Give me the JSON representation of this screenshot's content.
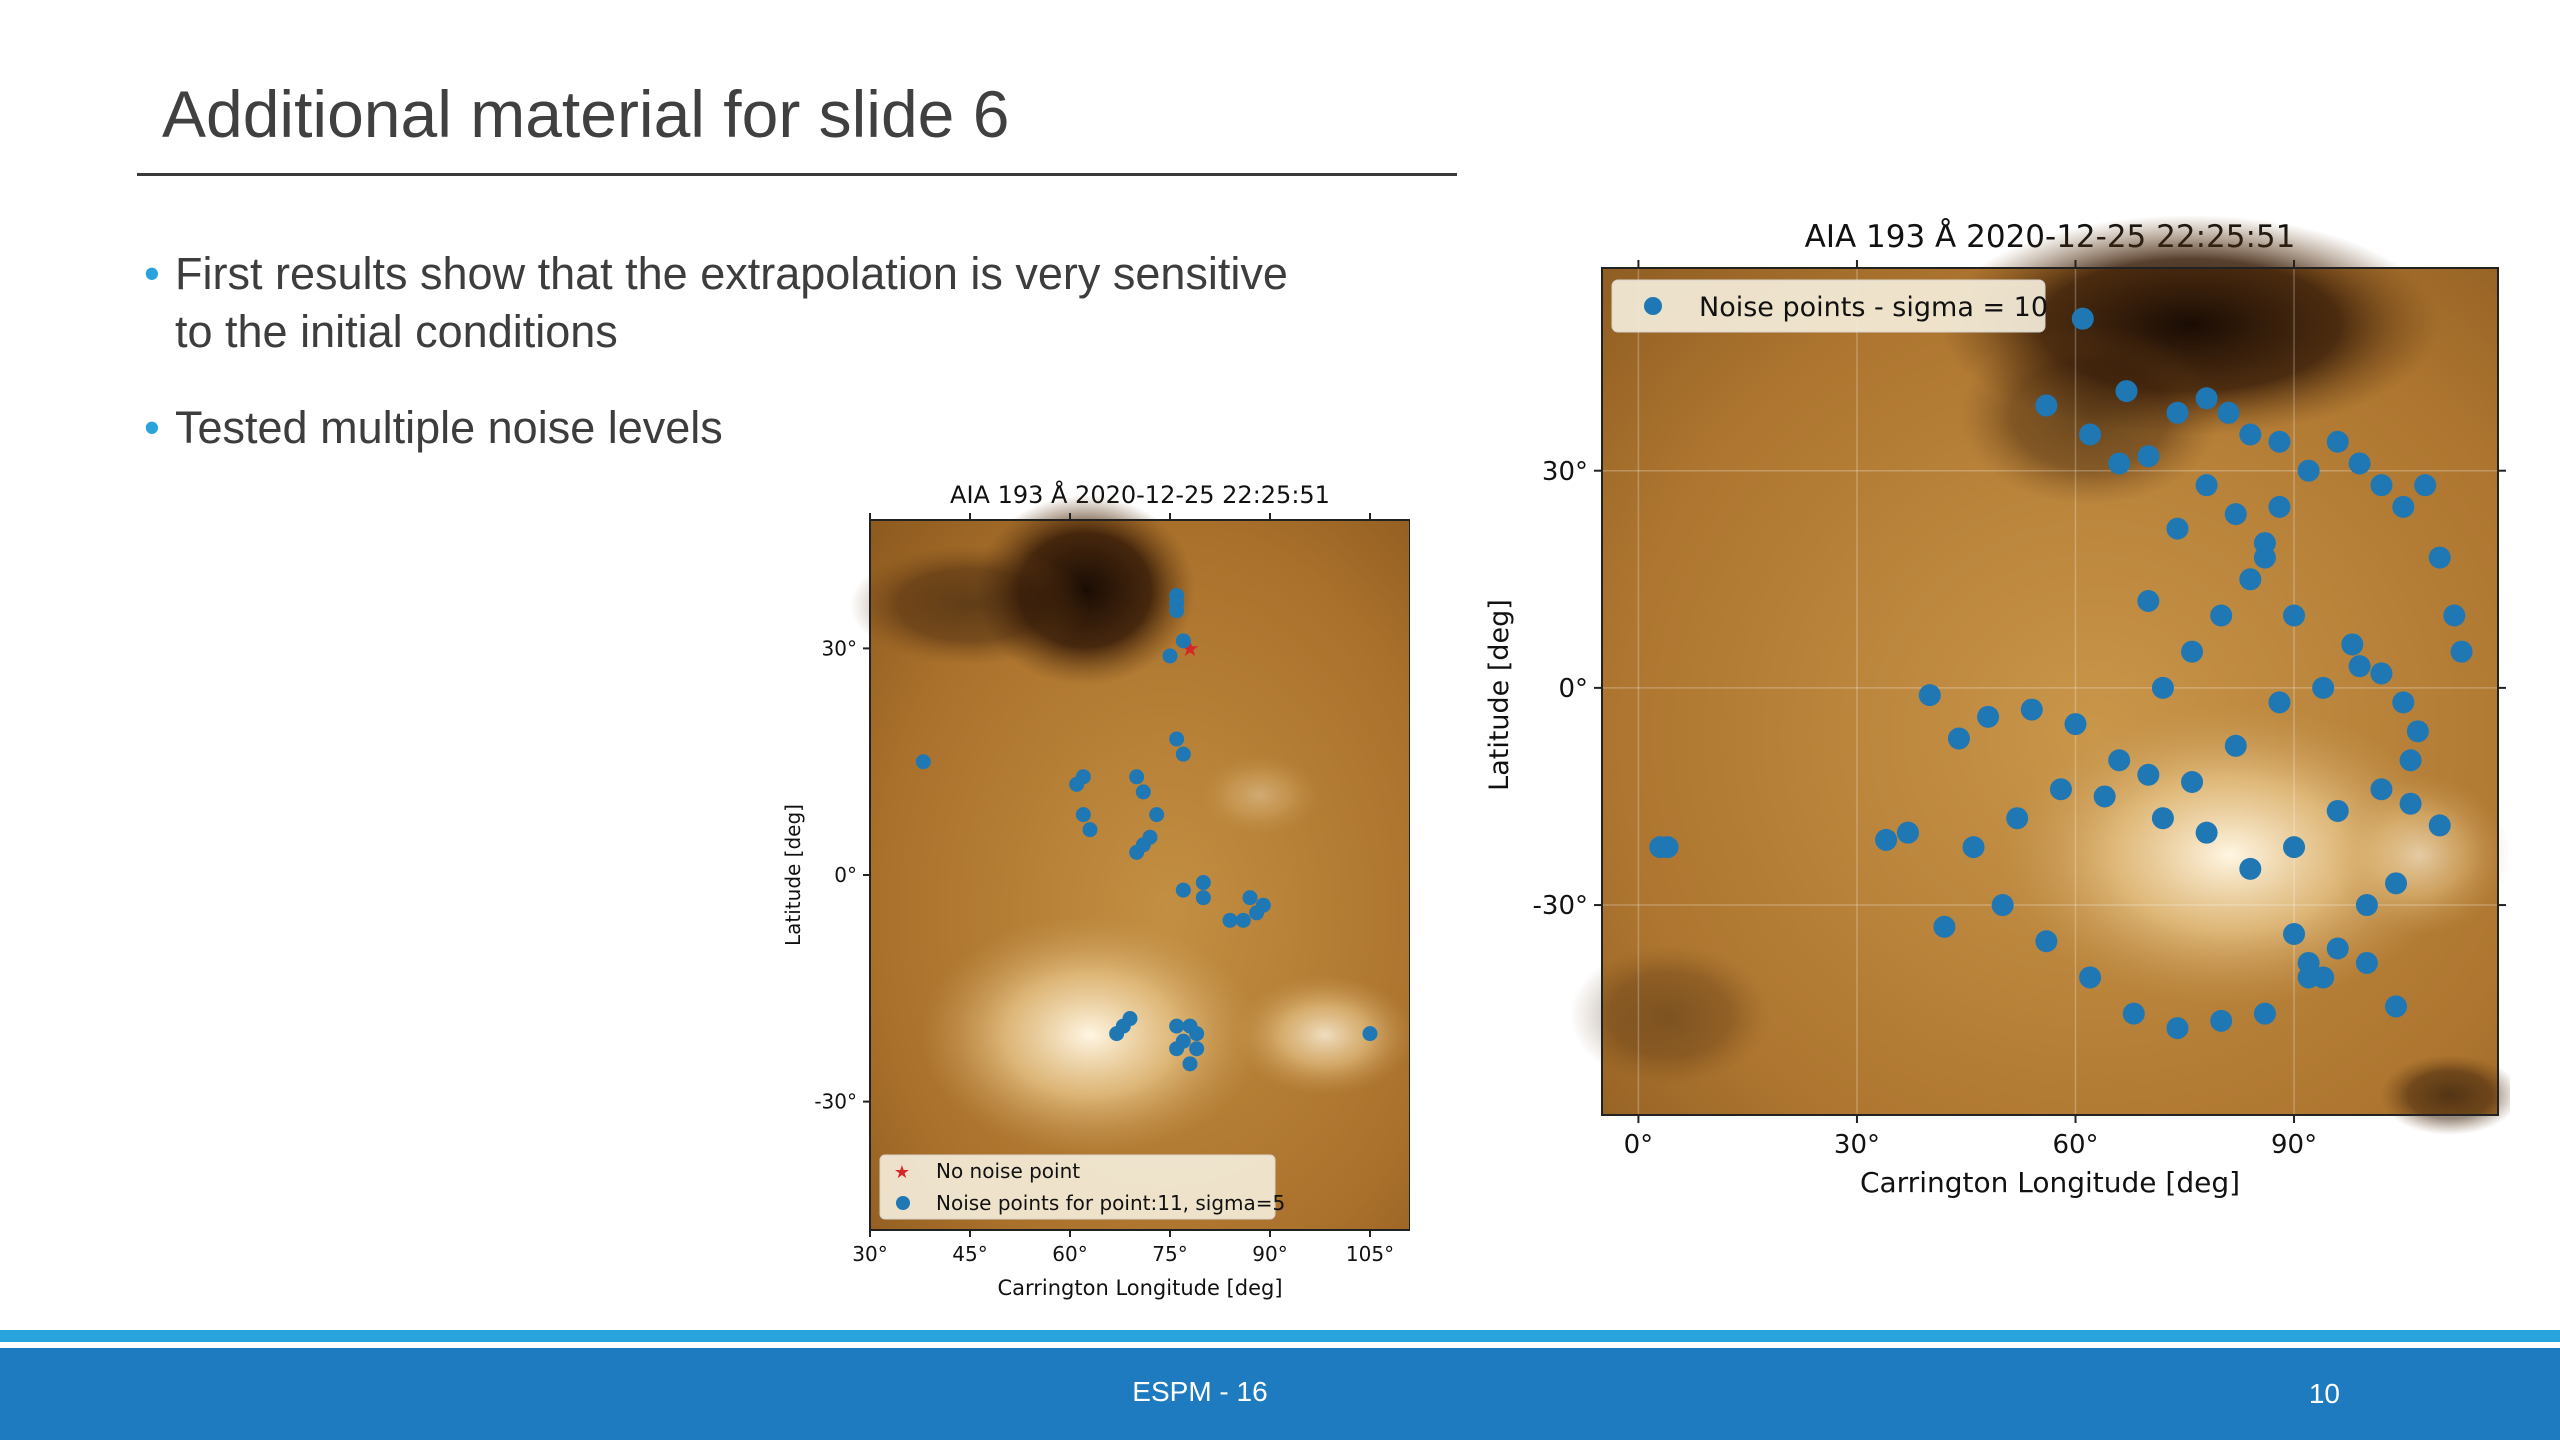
{
  "slide": {
    "title": "Additional material for slide 6",
    "bullets": [
      "First results show that the extrapolation is very sensitive to the initial conditions",
      "Tested multiple noise levels"
    ],
    "footer_text": "ESPM - 16",
    "page_number": "10"
  },
  "colors": {
    "accent_bullet": "#29a3dc",
    "footer_bar": "#1f7bc0",
    "footer_line": "#29a3dc",
    "noise_points": "#1f77b4",
    "no_noise_point": "#d62728"
  },
  "chart_data": [
    {
      "type": "scatter",
      "title": "AIA 193 Å 2020-12-25 22:25:51",
      "xlabel": "Carrington Longitude [deg]",
      "ylabel": "Latitude [deg]",
      "x_ticks": [
        "30°",
        "45°",
        "60°",
        "75°",
        "90°",
        "105°"
      ],
      "y_ticks": [
        "30°",
        "0°",
        "-30°"
      ],
      "xlim": [
        30,
        111
      ],
      "ylim": [
        -47,
        47
      ],
      "background": "AIA 193 Å solar image",
      "legend_position": "lower-left",
      "legend": [
        "No noise point",
        "Noise points for point:11, sigma=5"
      ],
      "series": [
        {
          "name": "No noise point",
          "marker": "star",
          "color": "#d62728",
          "x": [
            78
          ],
          "y": [
            30
          ]
        },
        {
          "name": "Noise points for point:11, sigma=5",
          "marker": "circle",
          "color": "#1f77b4",
          "x": [
            76,
            76,
            76,
            77,
            75,
            38,
            76,
            77,
            70,
            62,
            61,
            62,
            63,
            71,
            73,
            72,
            70,
            71,
            80,
            77,
            80,
            87,
            89,
            88,
            86,
            84,
            69,
            68,
            67,
            76,
            78,
            77,
            79,
            78,
            76,
            79,
            105
          ],
          "y": [
            37,
            36,
            35,
            31,
            29,
            15,
            18,
            16,
            13,
            13,
            12,
            8,
            6,
            11,
            8,
            5,
            3,
            4,
            -1,
            -2,
            -3,
            -3,
            -4,
            -5,
            -6,
            -6,
            -19,
            -20,
            -21,
            -20,
            -20,
            -22,
            -23,
            -25,
            -23,
            -21,
            -21
          ]
        }
      ]
    },
    {
      "type": "scatter",
      "title": "AIA 193 Å 2020-12-25 22:25:51",
      "xlabel": "Carrington Longitude [deg]",
      "ylabel": "Latitude [deg]",
      "x_ticks": [
        "0°",
        "30°",
        "60°",
        "90°"
      ],
      "y_ticks": [
        "30°",
        "0°",
        "-30°"
      ],
      "xlim": [
        -5,
        118
      ],
      "ylim": [
        -59,
        58
      ],
      "background": "AIA 193 Å solar image",
      "legend_position": "top-left",
      "legend": [
        "Noise points - sigma = 10"
      ],
      "series": [
        {
          "name": "Noise points - sigma = 10",
          "marker": "circle",
          "color": "#1f77b4",
          "x": [
            61,
            67,
            56,
            4,
            3,
            42,
            34,
            37,
            40,
            62,
            66,
            70,
            74,
            78,
            81,
            84,
            88,
            92,
            96,
            99,
            102,
            105,
            108,
            110,
            112,
            113,
            99,
            94,
            88,
            82,
            76,
            70,
            64,
            58,
            52,
            46,
            44,
            48,
            54,
            60,
            66,
            72,
            78,
            84,
            90,
            96,
            102,
            106,
            110,
            104,
            100,
            96,
            92,
            86,
            80,
            74,
            68,
            62,
            56,
            50,
            88,
            86,
            84,
            80,
            76,
            72,
            70,
            74,
            78,
            82,
            86,
            90,
            98,
            102,
            105,
            107,
            106,
            90,
            92,
            94,
            100,
            104
          ],
          "y": [
            51,
            41,
            39,
            -22,
            -22,
            -33,
            -21,
            -20,
            -1,
            35,
            31,
            32,
            38,
            40,
            38,
            35,
            34,
            30,
            34,
            31,
            28,
            25,
            28,
            18,
            10,
            5,
            3,
            0,
            -2,
            -8,
            -13,
            -12,
            -15,
            -14,
            -18,
            -22,
            -7,
            -4,
            -3,
            -5,
            -10,
            -18,
            -20,
            -25,
            -22,
            -17,
            -14,
            -16,
            -19,
            -27,
            -30,
            -36,
            -40,
            -45,
            -46,
            -47,
            -45,
            -40,
            -35,
            -30,
            25,
            20,
            15,
            10,
            5,
            0,
            12,
            22,
            28,
            24,
            18,
            10,
            6,
            2,
            -2,
            -6,
            -10,
            -34,
            -38,
            -40,
            -38,
            -44
          ]
        }
      ]
    }
  ]
}
